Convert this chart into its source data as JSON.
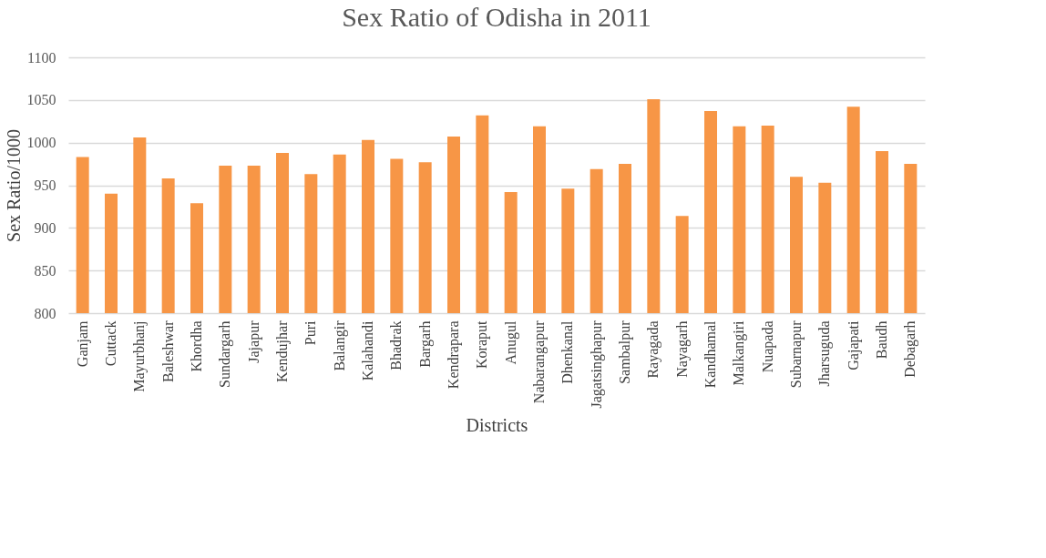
{
  "chart_data": {
    "type": "bar",
    "title": "Sex Ratio of Odisha in 2011",
    "xlabel": "Districts",
    "ylabel": "Sex Ratio/1000",
    "categories": [
      "Ganjam",
      "Cuttack",
      "Mayurbhanj",
      "Baleshwar",
      "Khordha",
      "Sundargarh",
      "Jajapur",
      "Kendujhar",
      "Puri",
      "Balangir",
      "Kalahandi",
      "Bhadrak",
      "Bargarh",
      "Kendrapara",
      "Koraput",
      "Anugul",
      "Nabarangapur",
      "Dhenkanal",
      "Jagatsinghapur",
      "Sambalpur",
      "Rayagada",
      "Nayagarh",
      "Kandhamal",
      "Malkangiri",
      "Nuapada",
      "Subarnapur",
      "Jharsuguda",
      "Gajapati",
      "Baudh",
      "Debagarh"
    ],
    "values": [
      983,
      940,
      1006,
      958,
      929,
      973,
      973,
      988,
      963,
      986,
      1003,
      981,
      977,
      1007,
      1032,
      942,
      1019,
      946,
      969,
      975,
      1051,
      914,
      1037,
      1019,
      1020,
      960,
      953,
      1042,
      990,
      975
    ],
    "color": "#f79646",
    "ylim": [
      800,
      1100
    ],
    "yticks": [
      800,
      850,
      900,
      950,
      1000,
      1050,
      1100
    ],
    "grid": "y"
  }
}
